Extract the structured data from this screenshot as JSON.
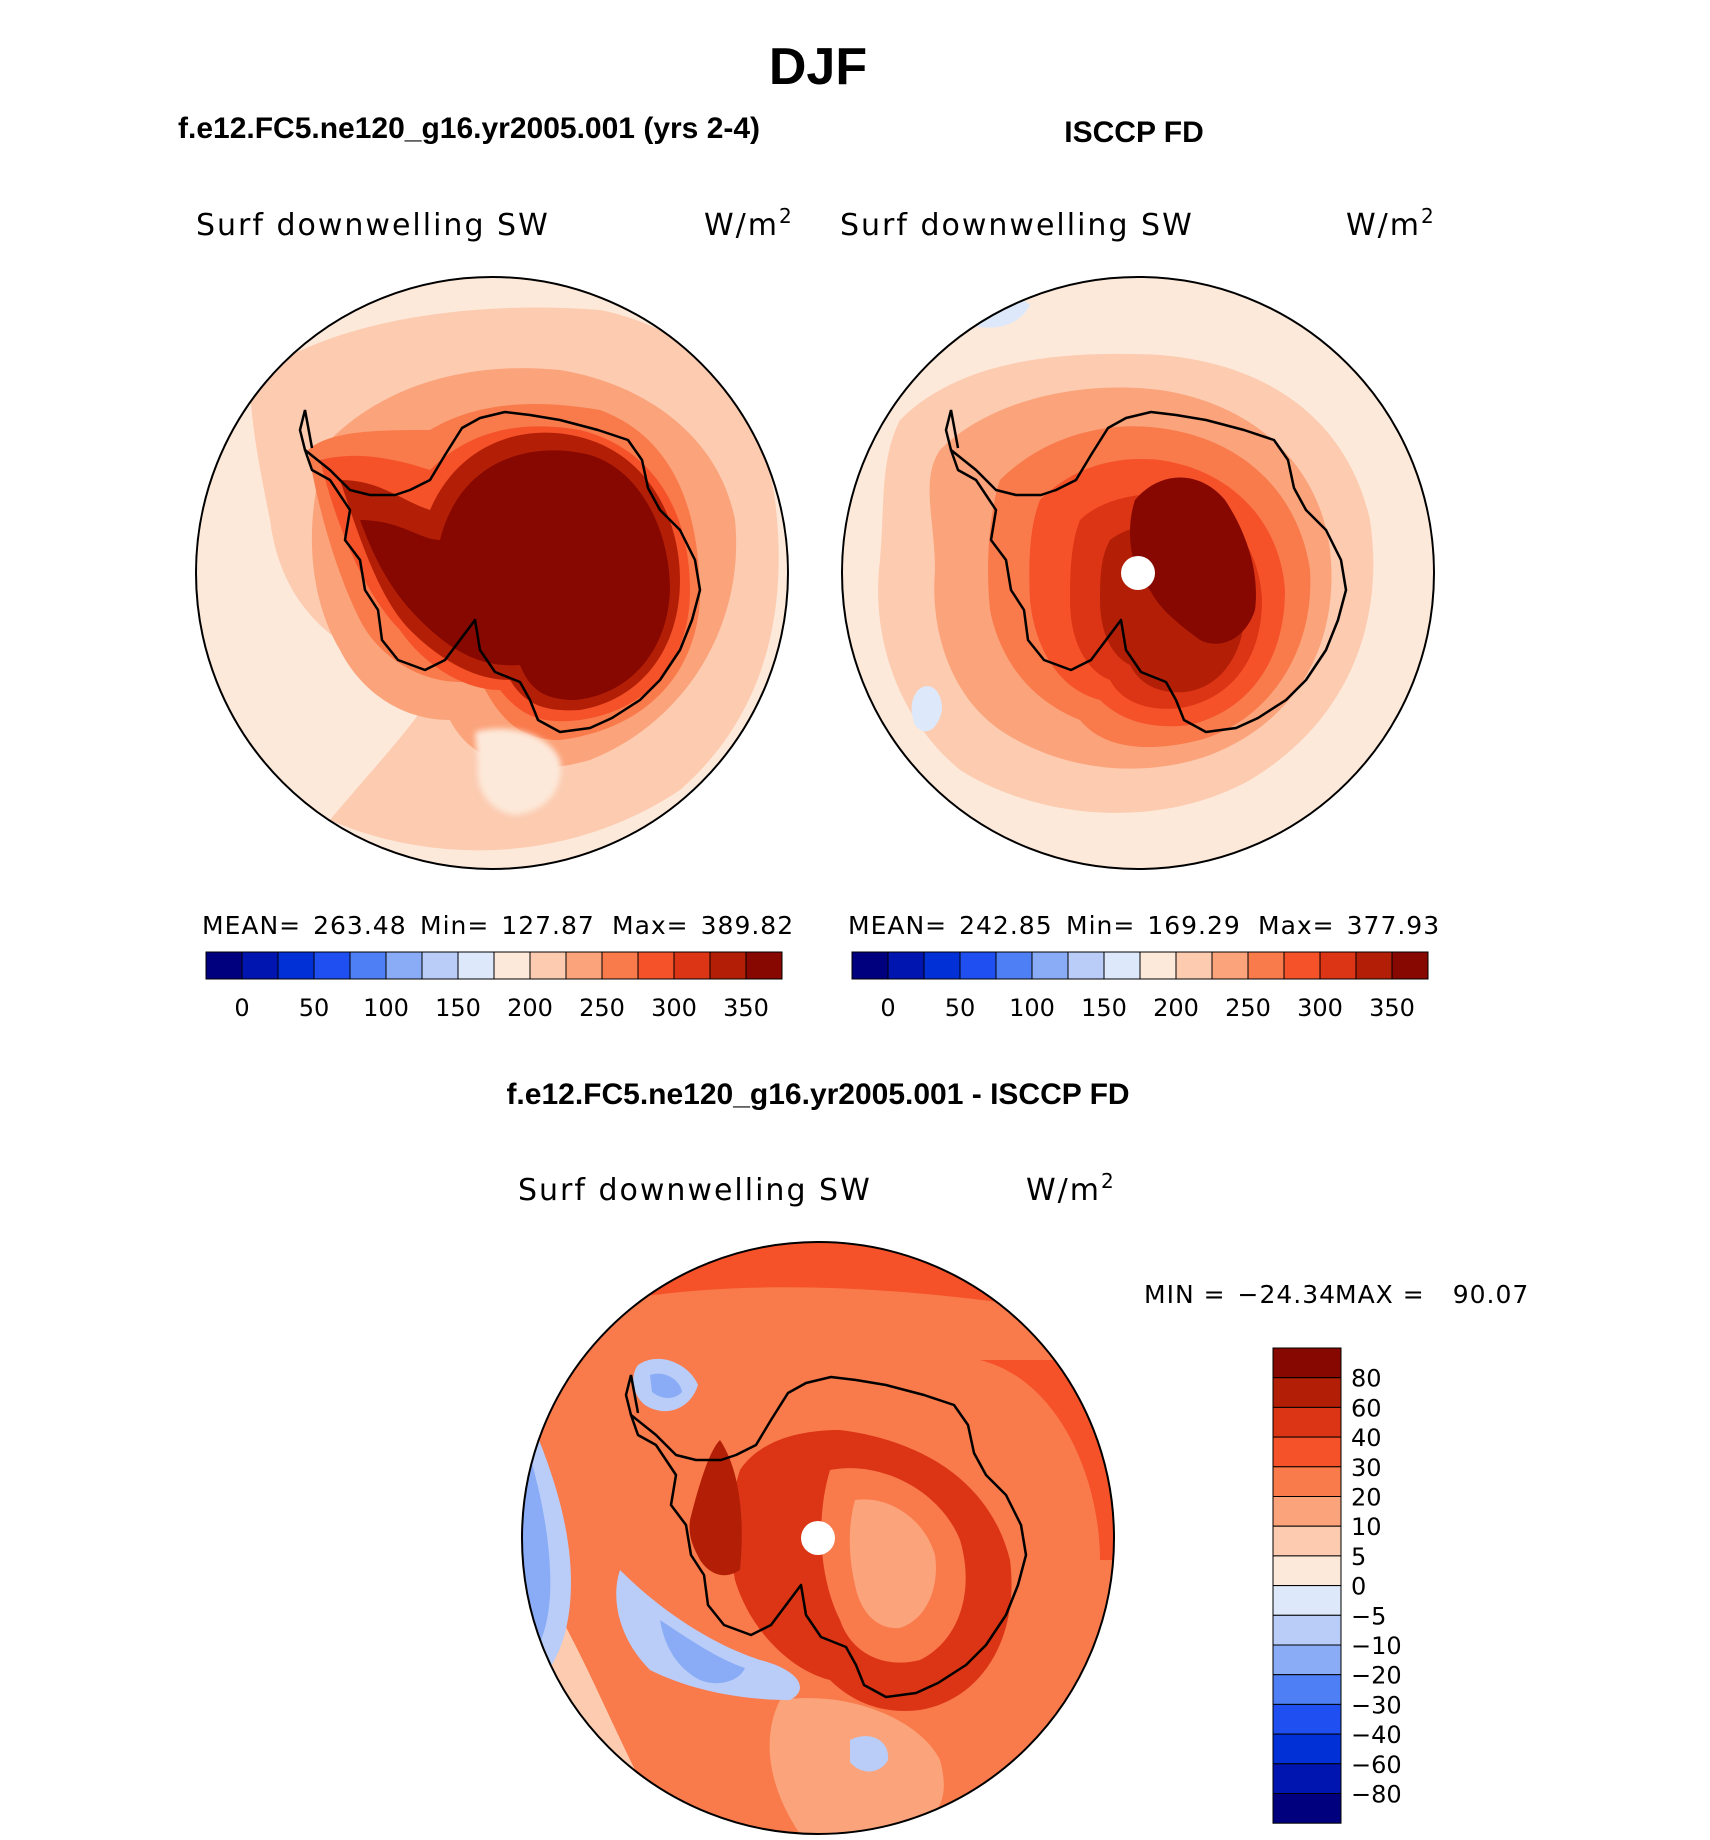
{
  "title": "DJF",
  "panels": [
    {
      "id": "model",
      "title": "f.e12.FC5.ne120_g16.yr2005.001 (yrs 2-4)",
      "variable": "Surf downwelling SW",
      "units": "W/m",
      "units_sup": "2",
      "stats": {
        "mean_label": "MEAN=",
        "mean": "263.48",
        "min_label": "Min=",
        "min": "127.87",
        "max_label": "Max=",
        "max": "389.82"
      },
      "colorbar_ticks": [
        "0",
        "50",
        "100",
        "150",
        "200",
        "250",
        "300",
        "350"
      ]
    },
    {
      "id": "obs",
      "title": "ISCCP FD",
      "variable": "Surf downwelling SW",
      "units": "W/m",
      "units_sup": "2",
      "stats": {
        "mean_label": "MEAN=",
        "mean": "242.85",
        "min_label": "Min=",
        "min": "169.29",
        "max_label": "Max=",
        "max": "377.93"
      },
      "colorbar_ticks": [
        "0",
        "50",
        "100",
        "150",
        "200",
        "250",
        "300",
        "350"
      ]
    },
    {
      "id": "diff",
      "title": "f.e12.FC5.ne120_g16.yr2005.001 - ISCCP FD",
      "variable": "Surf downwelling SW",
      "units": "W/m",
      "units_sup": "2",
      "stats": {
        "min_label": "MIN =",
        "min": "−24.34",
        "max_label": "MAX =",
        "max": "90.07"
      },
      "colorbar_ticks": [
        "80",
        "60",
        "40",
        "30",
        "20",
        "10",
        "5",
        "0",
        "−5",
        "−10",
        "−20",
        "−30",
        "−40",
        "−60",
        "−80"
      ]
    }
  ],
  "palette_16": [
    "#00007f",
    "#0015b0",
    "#0030d6",
    "#1f4ff0",
    "#4f7ff5",
    "#8aacf6",
    "#b9cdf8",
    "#dde9fa",
    "#fde9da",
    "#fccbb0",
    "#fba37a",
    "#f97a4b",
    "#f5522a",
    "#dc3515",
    "#b31f06",
    "#870800"
  ]
}
